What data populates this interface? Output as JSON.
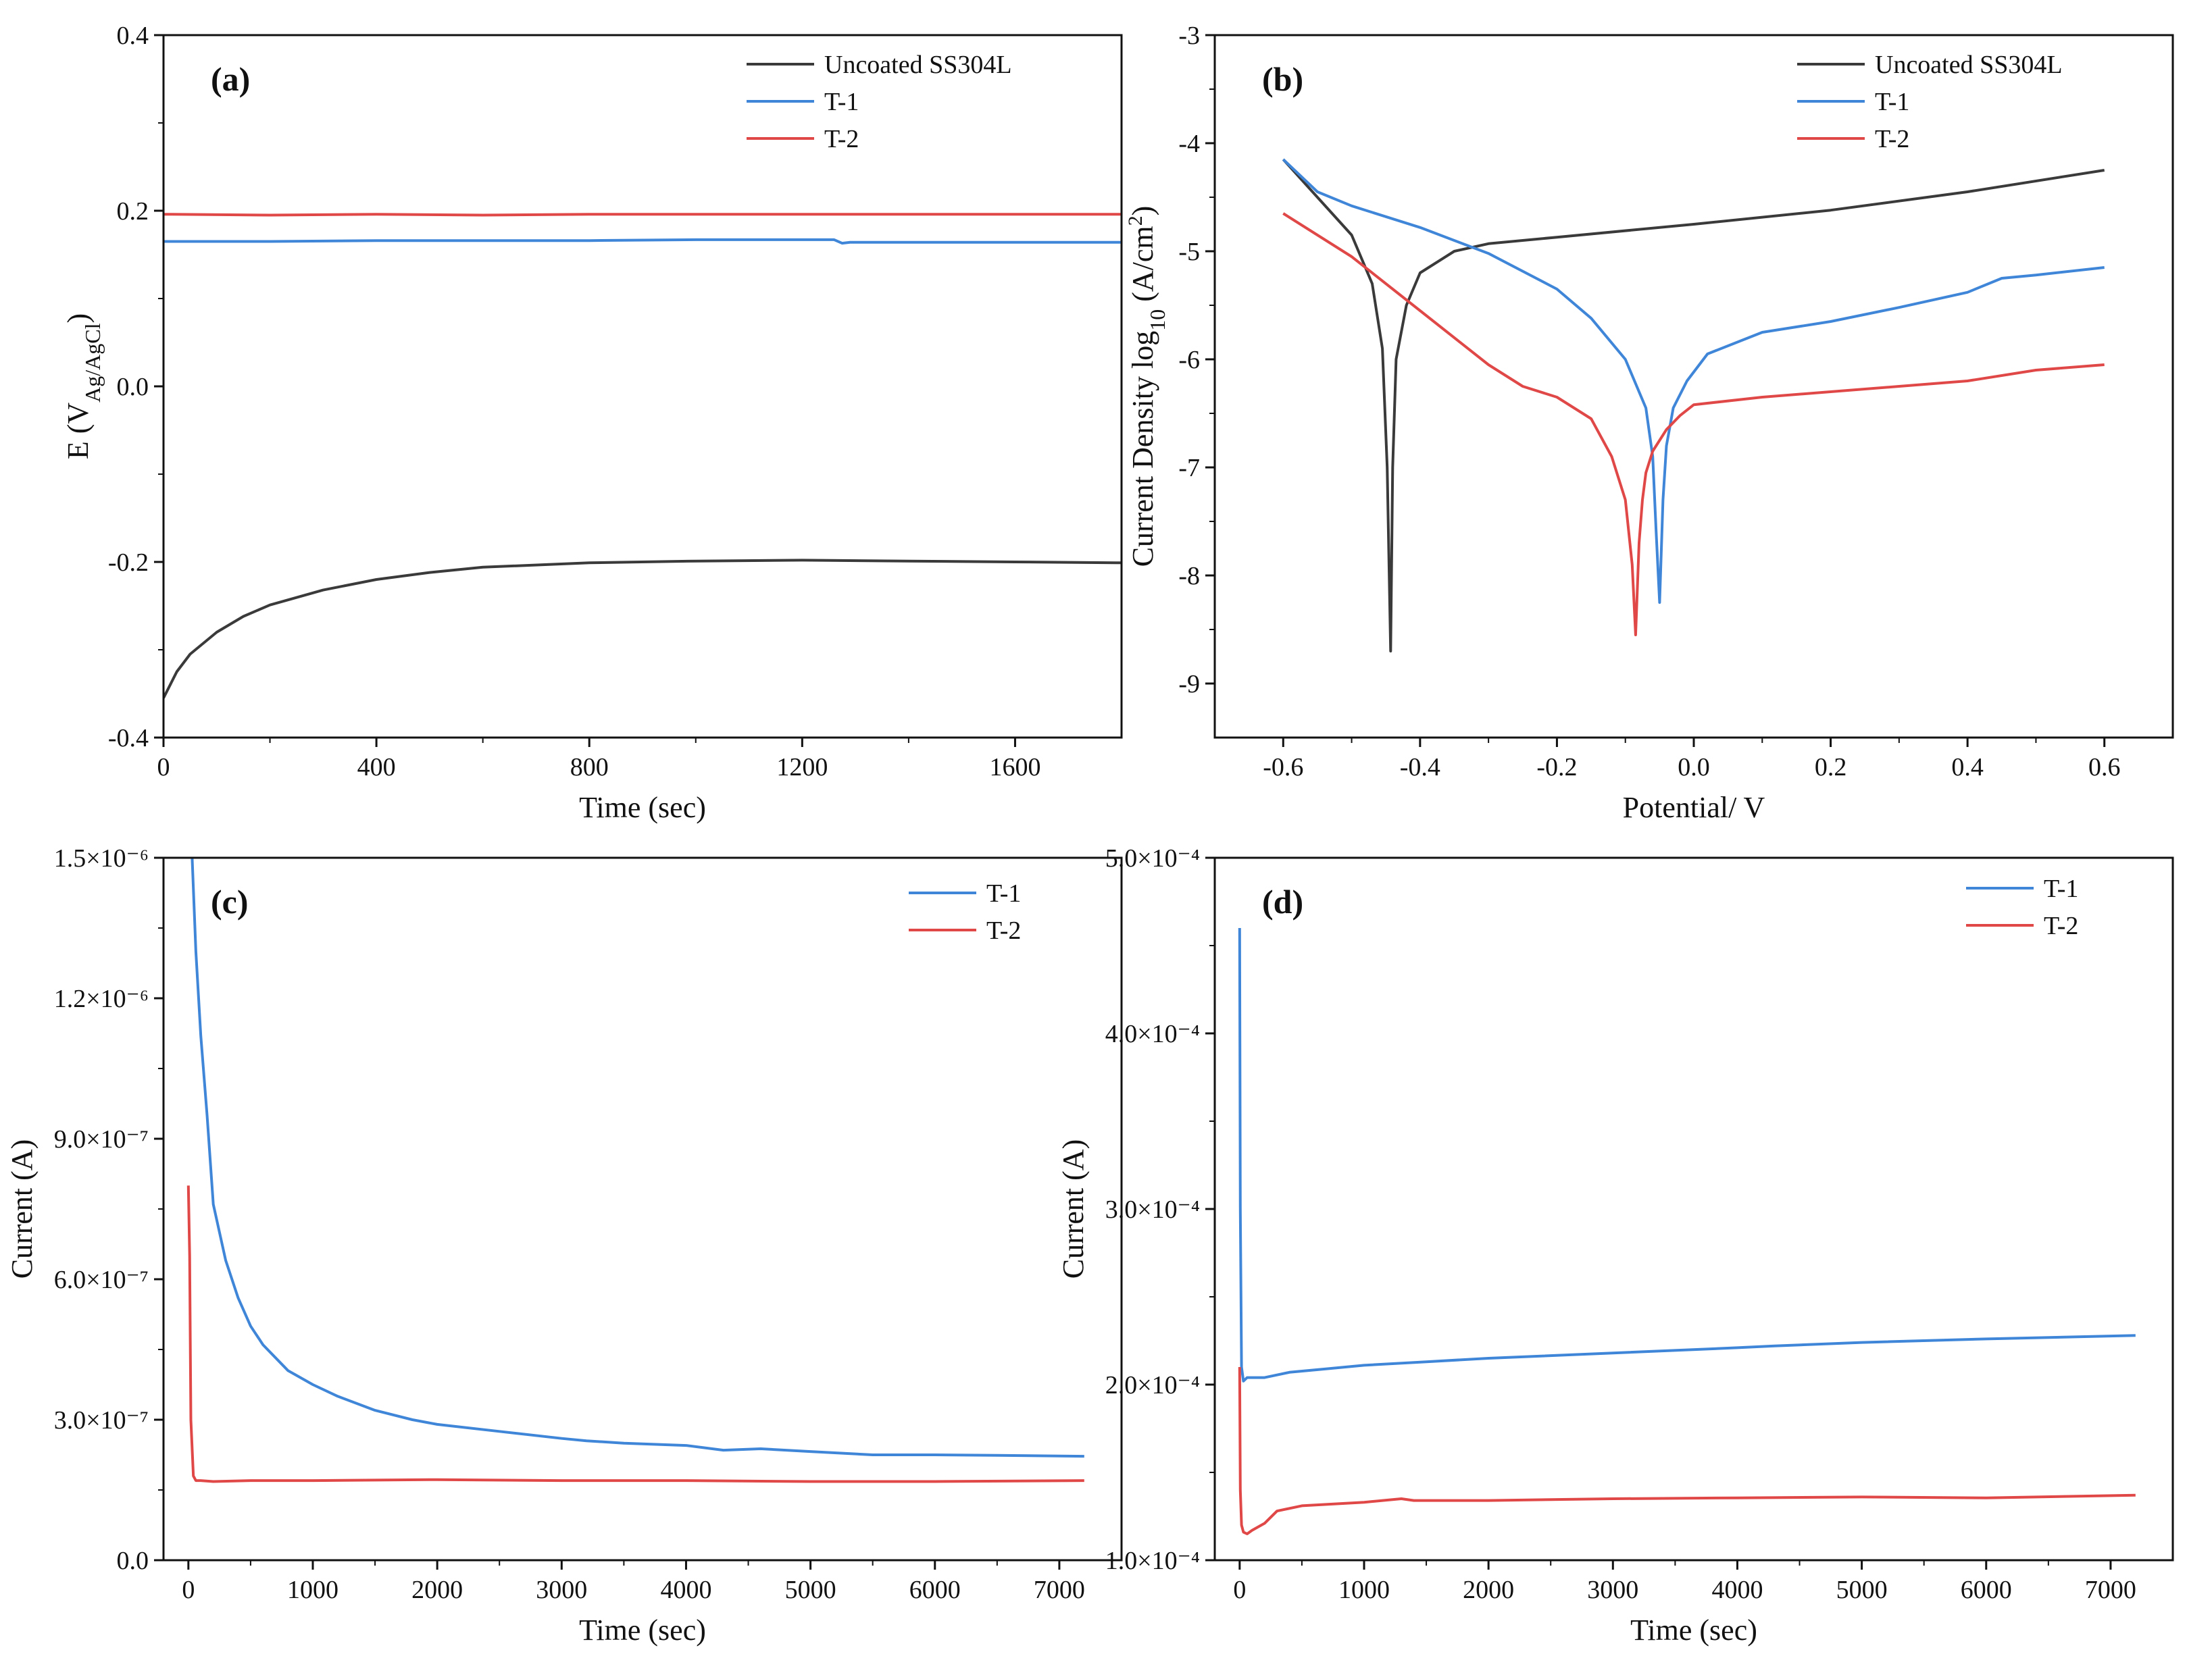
{
  "colors": {
    "uncoated": "#3a3a3a",
    "t1": "#3f86d8",
    "t2": "#e04848"
  },
  "chart_data": [
    {
      "panel": "(a)",
      "type": "line",
      "xlabel": "Time (sec)",
      "ylabel": "E (V",
      "ylabel_sub": "Ag/AgCl",
      "ylabel_tail": ")",
      "xlim": [
        0,
        1800
      ],
      "ylim": [
        -0.4,
        0.4
      ],
      "xticks": [
        0,
        400,
        800,
        1200,
        1600
      ],
      "xtick_labels": [
        "0",
        "400",
        "800",
        "1200",
        "1600"
      ],
      "yticks": [
        -0.4,
        -0.2,
        0.0,
        0.2,
        0.4
      ],
      "ytick_labels": [
        "-0.4",
        "-0.2",
        "0.0",
        "0.2",
        "0.4"
      ],
      "legend_position": "top-right",
      "series": [
        {
          "name": "Uncoated SS304L",
          "color_key": "uncoated",
          "x": [
            0,
            25,
            50,
            100,
            150,
            200,
            300,
            400,
            500,
            600,
            800,
            1000,
            1200,
            1400,
            1600,
            1800
          ],
          "y": [
            -0.355,
            -0.325,
            -0.305,
            -0.28,
            -0.262,
            -0.249,
            -0.232,
            -0.22,
            -0.212,
            -0.206,
            -0.201,
            -0.199,
            -0.198,
            -0.199,
            -0.2,
            -0.201
          ]
        },
        {
          "name": "T-1",
          "color_key": "t1",
          "x": [
            0,
            200,
            400,
            600,
            800,
            1000,
            1200,
            1260,
            1275,
            1290,
            1400,
            1600,
            1800
          ],
          "y": [
            0.165,
            0.165,
            0.166,
            0.166,
            0.166,
            0.167,
            0.167,
            0.167,
            0.163,
            0.164,
            0.164,
            0.164,
            0.164
          ]
        },
        {
          "name": "T-2",
          "color_key": "t2",
          "x": [
            0,
            200,
            400,
            600,
            800,
            1000,
            1200,
            1400,
            1600,
            1800
          ],
          "y": [
            0.196,
            0.195,
            0.196,
            0.195,
            0.196,
            0.196,
            0.196,
            0.196,
            0.196,
            0.196
          ]
        }
      ]
    },
    {
      "panel": "(b)",
      "type": "line",
      "xlabel": "Potential/ V",
      "ylabel": "Current Density log",
      "ylabel_sub": "10",
      "ylabel_tail": " (A/cm",
      "ylabel_sup": "2",
      "ylabel_end": ")",
      "xlim": [
        -0.7,
        0.7
      ],
      "ylim": [
        -9.5,
        -3
      ],
      "xticks": [
        -0.6,
        -0.4,
        -0.2,
        0.0,
        0.2,
        0.4,
        0.6
      ],
      "xtick_labels": [
        "-0.6",
        "-0.4",
        "-0.2",
        "0.0",
        "0.2",
        "0.4",
        "0.6"
      ],
      "yticks": [
        -9,
        -8,
        -7,
        -6,
        -5,
        -4,
        -3
      ],
      "ytick_labels": [
        "-9",
        "-8",
        "-7",
        "-6",
        "-5",
        "-4",
        "-3"
      ],
      "legend_position": "top-right",
      "series": [
        {
          "name": "Uncoated SS304L",
          "color_key": "uncoated",
          "x": [
            -0.6,
            -0.55,
            -0.5,
            -0.47,
            -0.455,
            -0.448,
            -0.443,
            -0.44,
            -0.435,
            -0.42,
            -0.4,
            -0.35,
            -0.3,
            -0.2,
            0.0,
            0.2,
            0.4,
            0.6
          ],
          "y": [
            -4.15,
            -4.5,
            -4.85,
            -5.3,
            -5.9,
            -7.0,
            -8.7,
            -7.0,
            -6.0,
            -5.5,
            -5.2,
            -5.0,
            -4.93,
            -4.87,
            -4.75,
            -4.62,
            -4.45,
            -4.25
          ]
        },
        {
          "name": "T-1",
          "color_key": "t1",
          "x": [
            -0.6,
            -0.55,
            -0.5,
            -0.4,
            -0.3,
            -0.2,
            -0.15,
            -0.1,
            -0.07,
            -0.06,
            -0.055,
            -0.05,
            -0.045,
            -0.04,
            -0.03,
            -0.01,
            0.02,
            0.1,
            0.2,
            0.3,
            0.4,
            0.45,
            0.5,
            0.6
          ],
          "y": [
            -4.15,
            -4.45,
            -4.58,
            -4.78,
            -5.02,
            -5.35,
            -5.62,
            -6.0,
            -6.45,
            -6.9,
            -7.6,
            -8.25,
            -7.3,
            -6.8,
            -6.45,
            -6.2,
            -5.95,
            -5.75,
            -5.65,
            -5.52,
            -5.38,
            -5.25,
            -5.22,
            -5.15
          ]
        },
        {
          "name": "T-2",
          "color_key": "t2",
          "x": [
            -0.6,
            -0.5,
            -0.4,
            -0.3,
            -0.25,
            -0.2,
            -0.15,
            -0.12,
            -0.1,
            -0.09,
            -0.085,
            -0.08,
            -0.075,
            -0.07,
            -0.06,
            -0.04,
            -0.02,
            0.0,
            0.1,
            0.2,
            0.3,
            0.4,
            0.5,
            0.6
          ],
          "y": [
            -4.65,
            -5.05,
            -5.55,
            -6.05,
            -6.25,
            -6.35,
            -6.55,
            -6.9,
            -7.3,
            -7.9,
            -8.55,
            -7.7,
            -7.3,
            -7.05,
            -6.85,
            -6.65,
            -6.52,
            -6.42,
            -6.35,
            -6.3,
            -6.25,
            -6.2,
            -6.1,
            -6.05
          ]
        }
      ]
    },
    {
      "panel": "(c)",
      "type": "line",
      "xlabel": "Time (sec)",
      "ylabel": "Current (A)",
      "xlim": [
        -200,
        7500
      ],
      "ylim": [
        0,
        1.5e-06
      ],
      "xticks": [
        0,
        1000,
        2000,
        3000,
        4000,
        5000,
        6000,
        7000
      ],
      "xtick_labels": [
        "0",
        "1000",
        "2000",
        "3000",
        "4000",
        "5000",
        "6000",
        "7000"
      ],
      "yticks": [
        0,
        3e-07,
        6e-07,
        9e-07,
        1.2e-06,
        1.5e-06
      ],
      "ytick_labels": [
        "0.0",
        "3.0×10⁻⁷",
        "6.0×10⁻⁷",
        "9.0×10⁻⁷",
        "1.2×10⁻⁶",
        "1.5×10⁻⁶"
      ],
      "legend_position": "top-right",
      "series": [
        {
          "name": "T-1",
          "color_key": "t1",
          "x": [
            30,
            60,
            100,
            150,
            200,
            300,
            400,
            500,
            600,
            800,
            1000,
            1200,
            1500,
            1800,
            2000,
            2500,
            3000,
            3200,
            3500,
            4000,
            4300,
            4600,
            5000,
            5500,
            6000,
            6500,
            7200
          ],
          "y": [
            1.5e-06,
            1.3e-06,
            1.12e-06,
            9.5e-07,
            7.6e-07,
            6.4e-07,
            5.6e-07,
            5e-07,
            4.6e-07,
            4.05e-07,
            3.75e-07,
            3.5e-07,
            3.2e-07,
            3e-07,
            2.9e-07,
            2.75e-07,
            2.6e-07,
            2.55e-07,
            2.5e-07,
            2.45e-07,
            2.35e-07,
            2.38e-07,
            2.32e-07,
            2.25e-07,
            2.25e-07,
            2.24e-07,
            2.22e-07
          ]
        },
        {
          "name": "T-2",
          "color_key": "t2",
          "x": [
            0,
            10,
            20,
            40,
            60,
            100,
            200,
            500,
            1000,
            2000,
            3000,
            4000,
            5000,
            6000,
            7200
          ],
          "y": [
            8e-07,
            6.5e-07,
            3e-07,
            1.8e-07,
            1.7e-07,
            1.7e-07,
            1.68e-07,
            1.7e-07,
            1.7e-07,
            1.72e-07,
            1.7e-07,
            1.7e-07,
            1.68e-07,
            1.68e-07,
            1.7e-07
          ]
        }
      ]
    },
    {
      "panel": "(d)",
      "type": "line",
      "xlabel": "Time (sec)",
      "ylabel": "Current (A)",
      "xlim": [
        -200,
        7500
      ],
      "ylim": [
        0.0001,
        0.0005
      ],
      "xticks": [
        0,
        1000,
        2000,
        3000,
        4000,
        5000,
        6000,
        7000
      ],
      "xtick_labels": [
        "0",
        "1000",
        "2000",
        "3000",
        "4000",
        "5000",
        "6000",
        "7000"
      ],
      "yticks": [
        0.0001,
        0.0002,
        0.0003,
        0.0004,
        0.0005
      ],
      "ytick_labels": [
        "1.0×10⁻⁴",
        "2.0×10⁻⁴",
        "3.0×10⁻⁴",
        "4.0×10⁻⁴",
        "5.0×10⁻⁴"
      ],
      "legend_position": "top-right",
      "series": [
        {
          "name": "T-1",
          "color_key": "t1",
          "x": [
            0,
            5,
            15,
            30,
            60,
            100,
            200,
            400,
            700,
            1000,
            1500,
            2000,
            3000,
            4000,
            4300,
            5000,
            6000,
            7200
          ],
          "y": [
            0.00046,
            0.0003,
            0.00021,
            0.000202,
            0.000204,
            0.000204,
            0.000204,
            0.000207,
            0.000209,
            0.000211,
            0.000213,
            0.000215,
            0.000218,
            0.000221,
            0.000222,
            0.000224,
            0.000226,
            0.000228
          ]
        },
        {
          "name": "T-2",
          "color_key": "t2",
          "x": [
            0,
            5,
            15,
            30,
            60,
            100,
            200,
            300,
            500,
            1000,
            1300,
            1400,
            2000,
            3000,
            4000,
            5000,
            6000,
            7200
          ],
          "y": [
            0.00021,
            0.00014,
            0.00012,
            0.000116,
            0.000115,
            0.000117,
            0.000121,
            0.000128,
            0.000131,
            0.000133,
            0.000135,
            0.000134,
            0.000134,
            0.000135,
            0.0001355,
            0.000136,
            0.0001355,
            0.000137
          ]
        }
      ]
    }
  ]
}
